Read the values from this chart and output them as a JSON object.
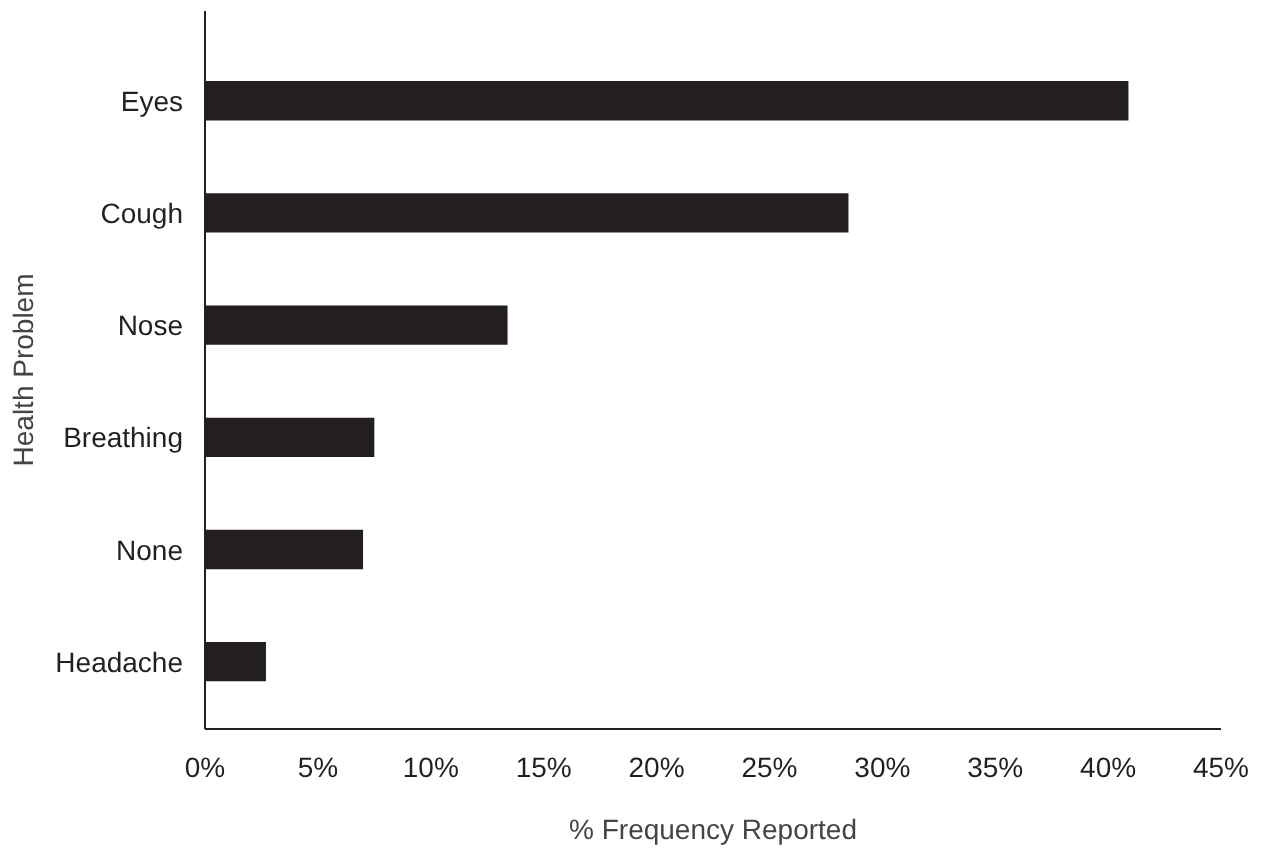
{
  "chart_data": {
    "type": "bar",
    "orientation": "horizontal",
    "xlabel": "% Frequency Reported",
    "ylabel": "Health Problem",
    "categories": [
      "Eyes",
      "Cough",
      "Nose",
      "Breathing",
      "None",
      "Headache"
    ],
    "values": [
      40.9,
      28.5,
      13.4,
      7.5,
      7.0,
      2.7
    ],
    "color": "#231f20",
    "xlim": [
      0,
      45
    ],
    "xticks": [
      {
        "value": 0,
        "label": "0%"
      },
      {
        "value": 5,
        "label": "5%"
      },
      {
        "value": 10,
        "label": "10%"
      },
      {
        "value": 15,
        "label": "15%"
      },
      {
        "value": 20,
        "label": "20%"
      },
      {
        "value": 25,
        "label": "25%"
      },
      {
        "value": 30,
        "label": "30%"
      },
      {
        "value": 35,
        "label": "35%"
      },
      {
        "value": 40,
        "label": "40%"
      },
      {
        "value": 45,
        "label": "45%"
      }
    ],
    "grid": false
  }
}
